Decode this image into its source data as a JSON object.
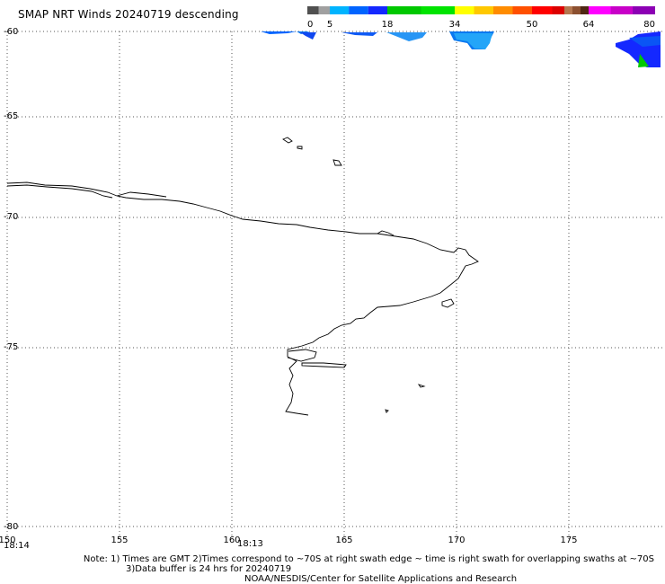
{
  "title": "SMAP NRT Winds  20240719 descending",
  "colorbar": {
    "ticks": [
      "0",
      "5",
      "18",
      "34",
      "50",
      "64",
      "80"
    ],
    "segments": [
      {
        "color": "#505050"
      },
      {
        "color": "#a0a0a0"
      },
      {
        "color": "#00b4ff"
      },
      {
        "color": "#0064ff"
      },
      {
        "color": "#1428ff"
      },
      {
        "color": "#00c800"
      },
      {
        "color": "#00e400"
      },
      {
        "color": "#ffff00"
      },
      {
        "color": "#ffc800"
      },
      {
        "color": "#ff8c00"
      },
      {
        "color": "#ff5000"
      },
      {
        "color": "#ff0000"
      },
      {
        "color": "#dc0000"
      },
      {
        "color": "#b47850"
      },
      {
        "color": "#8c5030"
      },
      {
        "color": "#502814"
      },
      {
        "color": "#ff00ff"
      },
      {
        "color": "#c800c8"
      },
      {
        "color": "#8c00b4"
      }
    ]
  },
  "axes": {
    "lon_ticks": [
      "155",
      "160",
      "165",
      "170",
      "175"
    ],
    "lon_start_label": "150",
    "lat_ticks": [
      "-60",
      "-65",
      "-70",
      "-75",
      "-80"
    ]
  },
  "swath_times": {
    "left": "18:14",
    "middle": "18:13"
  },
  "notes": {
    "line1": "Note: 1) Times are GMT 2)Times correspond to ~70S at right swath edge ~ time is right swath for overlapping swaths at ~70S",
    "line2": "3)Data buffer is 24 hrs for 20240719",
    "line3": "NOAA/NESDIS/Center for Satellite Applications and Research"
  }
}
